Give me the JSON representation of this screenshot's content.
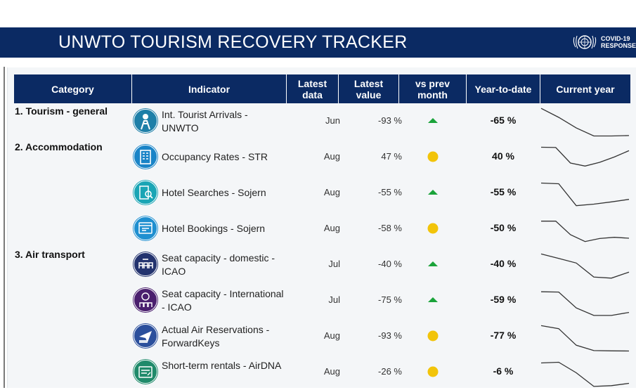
{
  "header": {
    "title": "UNWTO TOURISM RECOVERY TRACKER",
    "badge_line1": "COVID-19",
    "badge_line2": "RESPONSE"
  },
  "table": {
    "columns": [
      "Category",
      "Indicator",
      "Latest data",
      "Latest value",
      "vs prev month",
      "Year-to-date",
      "Current year"
    ],
    "rows": [
      {
        "category": "1. Tourism - general",
        "indicator": "Int. Tourist Arrivals - UNWTO",
        "latest": "Jun",
        "value": "-93 %",
        "trend": "up",
        "ytd": "-65 %",
        "icon": "tourist-arrivals-icon",
        "icon_color": "#1e7fa8",
        "spark": [
          0.9,
          0.3,
          -0.4,
          -0.93,
          -0.93,
          -0.9
        ]
      },
      {
        "category": "2. Accommodation",
        "indicator": "Occupancy Rates - STR",
        "latest": "Aug",
        "value": "47 %",
        "trend": "neutral",
        "ytd": "40 %",
        "icon": "hotel-building-icon",
        "icon_color": "#1a84c7",
        "spark": [
          0.7,
          0.68,
          -0.35,
          -0.55,
          -0.3,
          0.05,
          0.47
        ]
      },
      {
        "category": "",
        "indicator": "Hotel Searches - Sojern",
        "latest": "Aug",
        "value": "-55 %",
        "trend": "up",
        "ytd": "-55 %",
        "icon": "hotel-search-icon",
        "icon_color": "#1aa5b5",
        "spark": [
          0.7,
          0.65,
          -0.8,
          -0.7,
          -0.55,
          -0.38
        ]
      },
      {
        "category": "",
        "indicator": "Hotel Bookings - Sojern",
        "latest": "Aug",
        "value": "-58 %",
        "trend": "neutral",
        "ytd": "-50 %",
        "icon": "hotel-booking-icon",
        "icon_color": "#1f8fd0",
        "spark": [
          0.55,
          0.55,
          -0.35,
          -0.8,
          -0.6,
          -0.52,
          -0.58
        ]
      },
      {
        "category": "3. Air transport",
        "indicator": "Seat capacity - domestic - ICAO",
        "latest": "Jul",
        "value": "-40 %",
        "trend": "up",
        "ytd": "-40 %",
        "icon": "airplane-seats-icon",
        "icon_color": "#23336e",
        "spark": [
          0.75,
          0.45,
          0.15,
          -0.78,
          -0.85,
          -0.45
        ]
      },
      {
        "category": "",
        "indicator": "Seat capacity - International - ICAO",
        "latest": "Jul",
        "value": "-75 %",
        "trend": "up",
        "ytd": "-59 %",
        "icon": "international-seats-icon",
        "icon_color": "#4a1f6e",
        "spark": [
          0.62,
          0.6,
          -0.45,
          -0.95,
          -0.95,
          -0.75
        ]
      },
      {
        "category": "",
        "indicator": "Actual Air Reservations - ForwardKeys",
        "latest": "Aug",
        "value": "-93 %",
        "trend": "neutral",
        "ytd": "-77 %",
        "icon": "booked-plane-icon",
        "icon_color": "#2b4f9c",
        "spark": [
          0.75,
          0.55,
          -0.55,
          -0.9,
          -0.92,
          -0.93
        ]
      },
      {
        "category": "",
        "indicator": "Short-term rentals - AirDNA",
        "latest": "Aug",
        "value": "-26 %",
        "trend": "neutral",
        "ytd": "-6 %",
        "icon": "rental-home-icon",
        "icon_color": "#1f8a6a",
        "spark": [
          0.65,
          0.7,
          0.0,
          -0.9,
          -0.85,
          -0.7
        ]
      }
    ]
  },
  "colors": {
    "navy": "#0b2a63",
    "trend_up": "#1aa33a",
    "trend_neutral": "#f2c40a",
    "spark_line": "#333333"
  }
}
